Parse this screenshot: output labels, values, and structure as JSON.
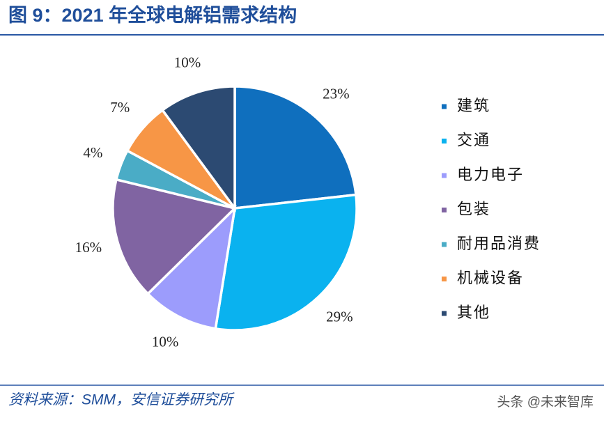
{
  "chart_data": {
    "type": "pie",
    "title": "图 9：2021 年全球电解铝需求结构",
    "categories": [
      "建筑",
      "交通",
      "电力电子",
      "包装",
      "耐用品消费",
      "机械设备",
      "其他"
    ],
    "values": [
      23,
      29,
      10,
      16,
      4,
      7,
      10
    ],
    "value_labels": [
      "23%",
      "29%",
      "10%",
      "16%",
      "4%",
      "7%",
      "10%"
    ],
    "colors": [
      "#0f6fbe",
      "#0ab2ef",
      "#9c9cfc",
      "#8064a2",
      "#4aacc6",
      "#f79646",
      "#2c4a72"
    ],
    "legend": "right",
    "source": "资料来源：SMM，安信证券研究所",
    "watermark": "头条 @未来智库"
  }
}
